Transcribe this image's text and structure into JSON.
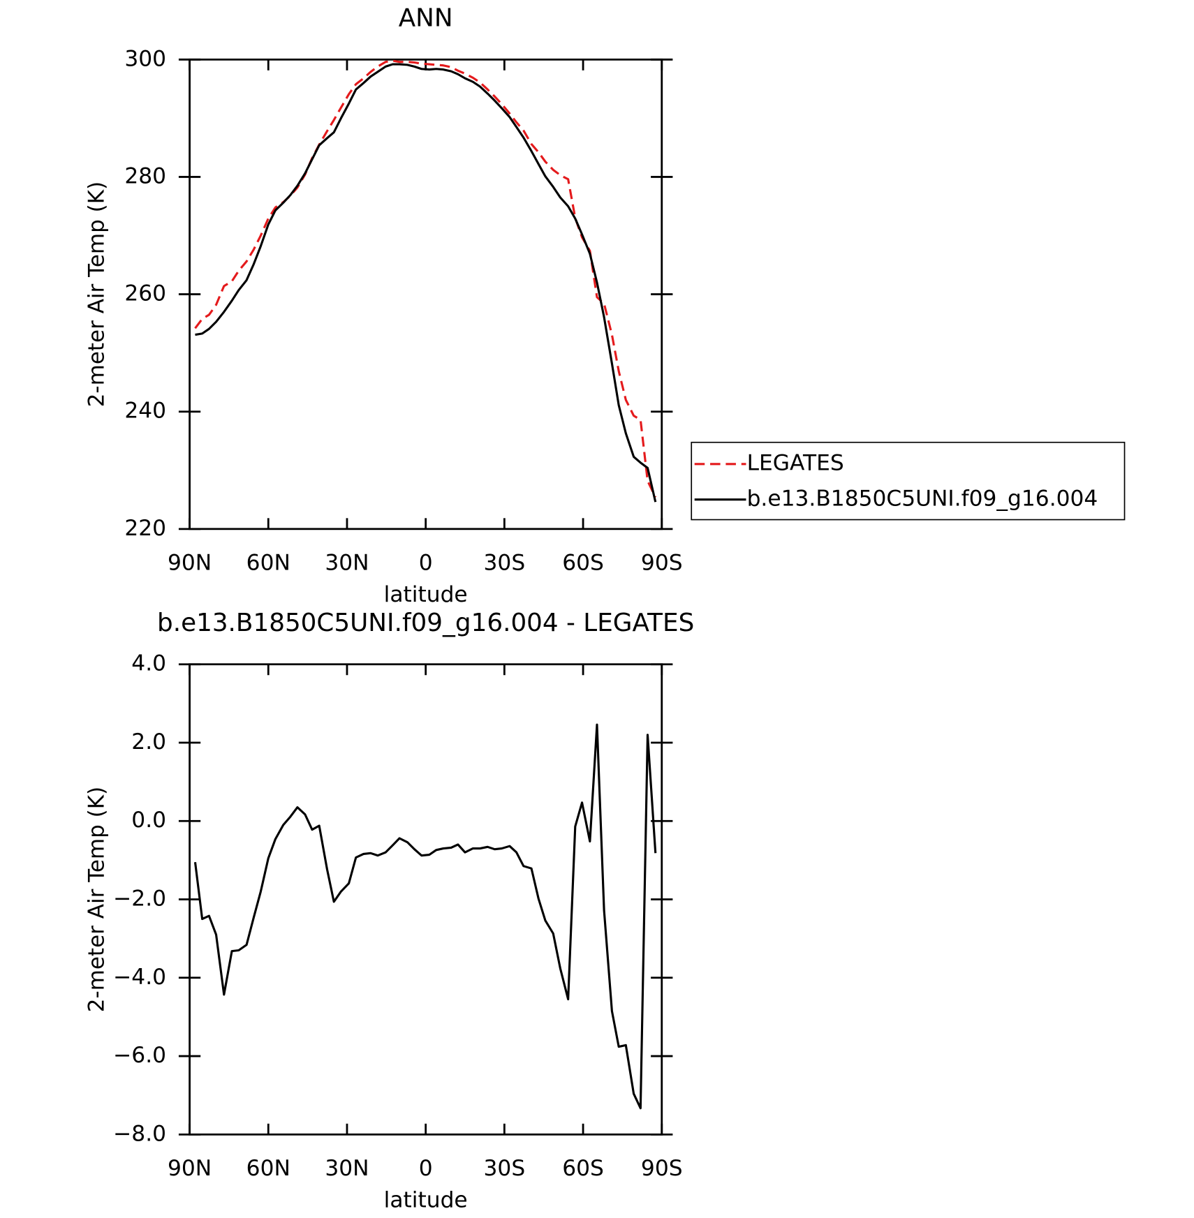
{
  "chart_data": [
    {
      "type": "line",
      "title": "ANN",
      "xlabel": "latitude",
      "ylabel": "2-meter Air Temp (K)",
      "xlim": [
        90,
        -90
      ],
      "xticks": [
        {
          "value": 90,
          "label": "90N"
        },
        {
          "value": 60,
          "label": "60N"
        },
        {
          "value": 30,
          "label": "30N"
        },
        0,
        {
          "value": -30,
          "label": "30S"
        },
        {
          "value": -60,
          "label": "60S"
        },
        {
          "value": -90,
          "label": "90S"
        }
      ],
      "ylim": [
        220,
        300
      ],
      "yticks": [
        220,
        240,
        260,
        280,
        300
      ],
      "legend": "right",
      "x": [
        87.9,
        85.2,
        82.6,
        79.9,
        76.9,
        73.9,
        71.3,
        68.3,
        65.6,
        62.9,
        60,
        57.3,
        54.3,
        51.6,
        48.9,
        46,
        43.3,
        40.6,
        37.6,
        35,
        32.3,
        29.3,
        26.6,
        23.7,
        21,
        18.3,
        15.3,
        12.6,
        10,
        7,
        4.3,
        1.6,
        -1.4,
        -4,
        -6.7,
        -9.7,
        -12.3,
        -15,
        -18,
        -20.7,
        -23.6,
        -26.3,
        -29,
        -32,
        -34.6,
        -37.3,
        -40.3,
        -43,
        -45.6,
        -48.6,
        -51.3,
        -54.3,
        -57,
        -59.6,
        -62.6,
        -65.3,
        -68,
        -71,
        -73.6,
        -76.3,
        -79.3,
        -81.9,
        -84.6,
        -87.6
      ],
      "series": [
        {
          "name": "LEGATES",
          "color": "#e41a1c",
          "dash": "dashed",
          "values": [
            254.2,
            255.8,
            256.5,
            258.2,
            261.4,
            262.2,
            264.0,
            265.6,
            267.6,
            270.0,
            272.9,
            274.8,
            275.7,
            276.8,
            278.2,
            280.4,
            283.2,
            285.5,
            287.8,
            289.7,
            291.8,
            294.1,
            295.8,
            296.8,
            297.9,
            298.8,
            299.6,
            299.8,
            299.6,
            299.6,
            299.5,
            299.3,
            299.2,
            299.1,
            299.0,
            298.7,
            298.1,
            297.6,
            296.9,
            296.1,
            294.9,
            293.7,
            292.4,
            290.8,
            289.3,
            287.9,
            285.6,
            284.2,
            282.6,
            281.2,
            280.3,
            279.6,
            273.0,
            269.7,
            267.4,
            259.5,
            258.4,
            253.1,
            246.9,
            242.0,
            239.3,
            238.6,
            228.2,
            225.4
          ]
        },
        {
          "name": "b.e13.B1850C5UNI.f09_g16.004",
          "color": "#000000",
          "dash": "solid",
          "values": [
            253.1,
            253.3,
            254.1,
            255.3,
            257.0,
            258.9,
            260.7,
            262.4,
            265.1,
            268.2,
            271.9,
            274.3,
            275.6,
            276.9,
            278.5,
            280.6,
            283.0,
            285.4,
            286.6,
            287.6,
            290.0,
            292.5,
            294.9,
            296.0,
            297.1,
            297.9,
            298.8,
            299.2,
            299.2,
            299.1,
            298.8,
            298.4,
            298.3,
            298.4,
            298.3,
            298.0,
            297.5,
            296.8,
            296.2,
            295.4,
            294.2,
            293.0,
            291.7,
            290.2,
            288.5,
            286.7,
            284.4,
            282.2,
            280.1,
            278.3,
            276.5,
            275.0,
            272.9,
            270.2,
            266.9,
            262.0,
            256.1,
            248.2,
            241.1,
            236.3,
            232.3,
            231.3,
            230.4,
            224.6
          ]
        }
      ]
    },
    {
      "type": "line",
      "title": "b.e13.B1850C5UNI.f09_g16.004 - LEGATES",
      "xlabel": "latitude",
      "ylabel": "2-meter Air Temp (K)",
      "xlim": [
        90,
        -90
      ],
      "xticks": [
        {
          "value": 90,
          "label": "90N"
        },
        {
          "value": 60,
          "label": "60N"
        },
        {
          "value": 30,
          "label": "30N"
        },
        0,
        {
          "value": -30,
          "label": "30S"
        },
        {
          "value": -60,
          "label": "60S"
        },
        {
          "value": -90,
          "label": "90S"
        }
      ],
      "ylim": [
        -8,
        4
      ],
      "yticks": [
        {
          "value": -8,
          "label": "−8.0"
        },
        {
          "value": -6,
          "label": "−6.0"
        },
        {
          "value": -4,
          "label": "−4.0"
        },
        {
          "value": -2,
          "label": "−2.0"
        },
        {
          "value": 0,
          "label": "0.0"
        },
        {
          "value": 2,
          "label": "2.0"
        },
        {
          "value": 4,
          "label": "4.0"
        }
      ],
      "x": [
        87.9,
        85.2,
        82.6,
        79.9,
        76.9,
        73.9,
        71.3,
        68.3,
        65.6,
        62.9,
        60,
        57.3,
        54.3,
        51.6,
        48.9,
        46,
        43.3,
        40.6,
        37.6,
        35,
        32.3,
        29.3,
        26.6,
        23.7,
        21,
        18.3,
        15.3,
        12.6,
        10,
        7,
        4.3,
        1.6,
        -1.4,
        -4,
        -6.7,
        -9.7,
        -12.3,
        -15,
        -18,
        -20.7,
        -23.6,
        -26.3,
        -29,
        -32,
        -34.6,
        -37.3,
        -40.3,
        -43,
        -45.6,
        -48.6,
        -51.3,
        -54.3,
        -57,
        -59.6,
        -62.6,
        -65.3,
        -68,
        -71,
        -73.6,
        -76.3,
        -79.3,
        -81.9,
        -84.6,
        -87.6
      ],
      "series": [
        {
          "color": "#000000",
          "dash": "solid",
          "values": [
            -1.05,
            -2.5,
            -2.42,
            -2.9,
            -4.43,
            -3.32,
            -3.3,
            -3.16,
            -2.47,
            -1.8,
            -0.95,
            -0.46,
            -0.1,
            0.11,
            0.35,
            0.17,
            -0.22,
            -0.12,
            -1.23,
            -2.06,
            -1.8,
            -1.59,
            -0.93,
            -0.84,
            -0.82,
            -0.88,
            -0.8,
            -0.62,
            -0.44,
            -0.54,
            -0.72,
            -0.88,
            -0.86,
            -0.74,
            -0.7,
            -0.68,
            -0.6,
            -0.8,
            -0.7,
            -0.7,
            -0.66,
            -0.72,
            -0.7,
            -0.64,
            -0.8,
            -1.15,
            -1.21,
            -1.98,
            -2.54,
            -2.87,
            -3.76,
            -4.55,
            -0.14,
            0.47,
            -0.52,
            2.46,
            -2.28,
            -4.85,
            -5.76,
            -5.72,
            -6.96,
            -7.33,
            2.2,
            -0.82
          ]
        }
      ]
    }
  ]
}
